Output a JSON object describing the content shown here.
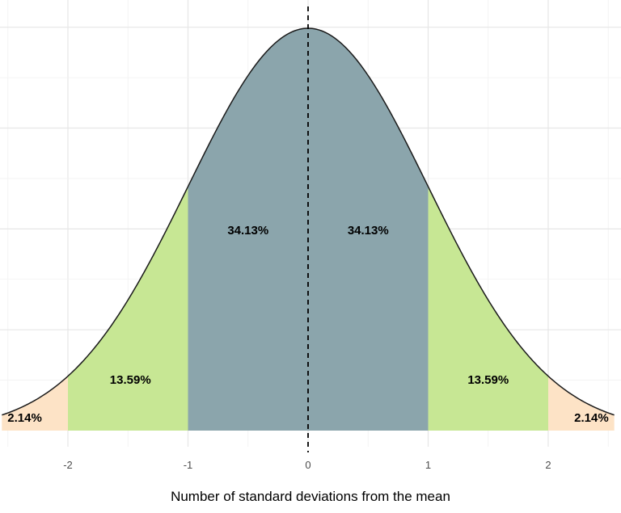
{
  "chart_data": {
    "type": "area",
    "title": "",
    "xlabel": "Number of standard deviations from the mean",
    "ylabel": "",
    "xlim": [
      -2.55,
      2.55
    ],
    "ylim": [
      0,
      0.4
    ],
    "grid": true,
    "x_ticks": [
      -2,
      -1,
      0,
      1,
      2
    ],
    "x_tick_labels": [
      "-2",
      "-1",
      "0",
      "1",
      "2"
    ],
    "curve": {
      "function": "standard normal density",
      "mean": 0,
      "sd": 1
    },
    "mean_line": {
      "x": 0,
      "style": "dashed"
    },
    "bands": [
      {
        "from": -2.55,
        "to": -2,
        "label": "2.14%",
        "value": 2.14,
        "color": "#fde3c6"
      },
      {
        "from": -2,
        "to": -1,
        "label": "13.59%",
        "value": 13.59,
        "color": "#c7e794"
      },
      {
        "from": -1,
        "to": 0,
        "label": "34.13%",
        "value": 34.13,
        "color": "#8ba5ac"
      },
      {
        "from": 0,
        "to": 1,
        "label": "34.13%",
        "value": 34.13,
        "color": "#8ba5ac"
      },
      {
        "from": 1,
        "to": 2,
        "label": "13.59%",
        "value": 13.59,
        "color": "#c7e794"
      },
      {
        "from": 2,
        "to": 2.55,
        "label": "2.14%",
        "value": 2.14,
        "color": "#fde3c6"
      }
    ]
  }
}
